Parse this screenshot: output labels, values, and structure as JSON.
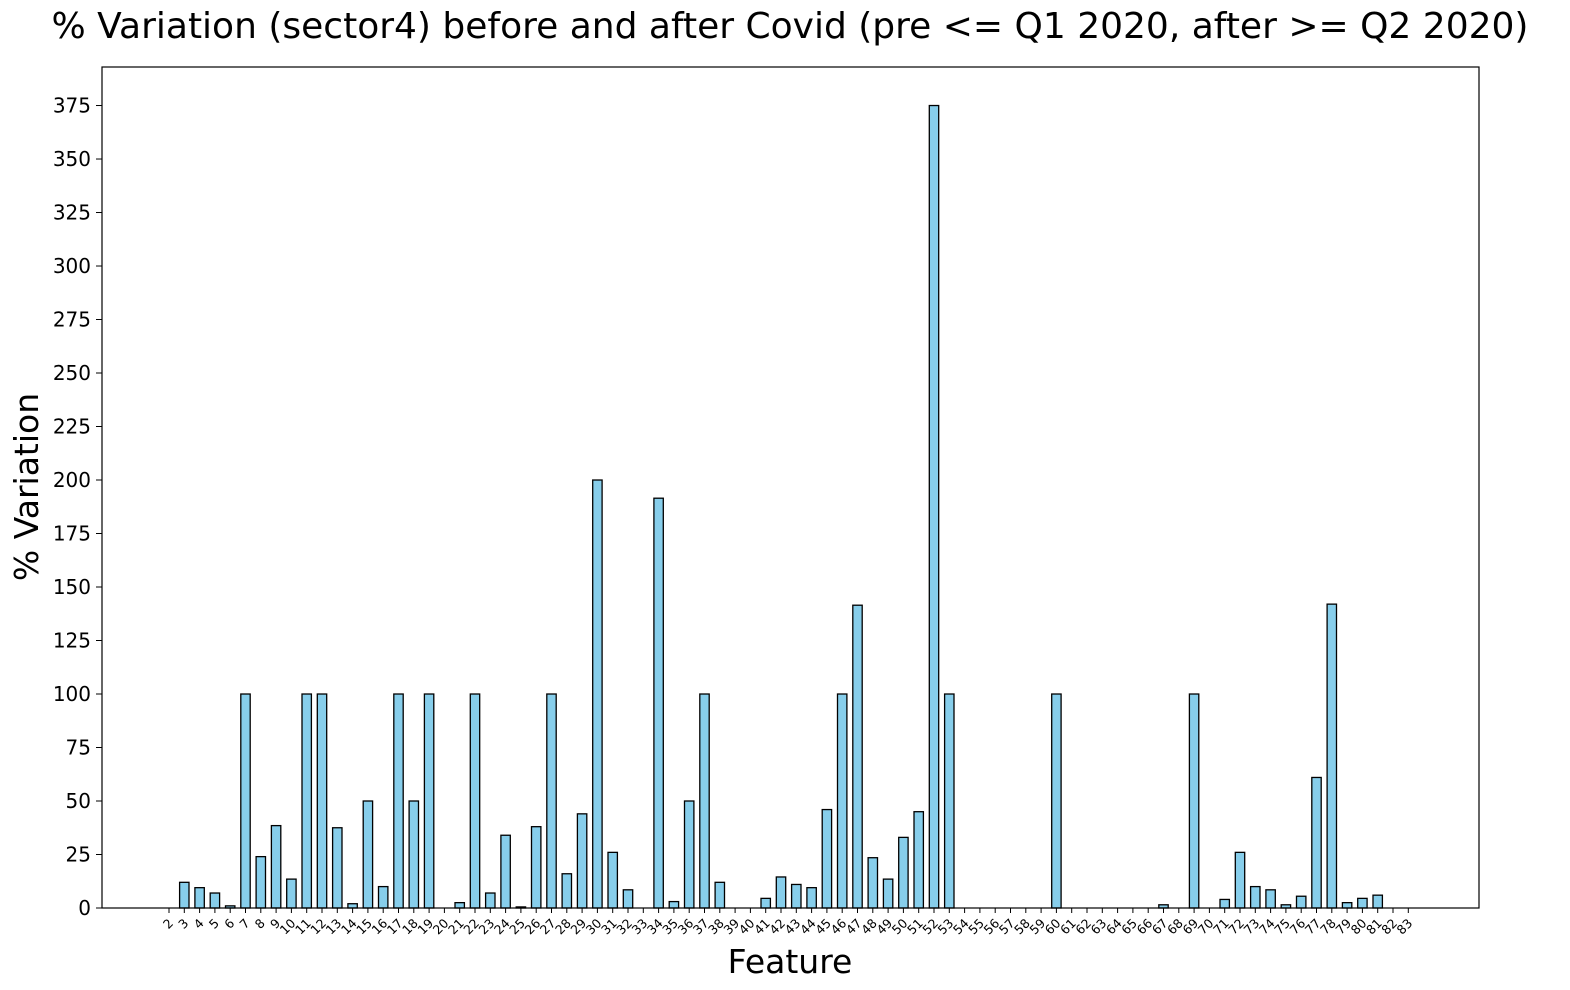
{
  "chart_data": {
    "type": "bar",
    "title": "% Variation (sector4) before and after Covid (pre <= Q1 2020, after >= Q2 2020)",
    "xlabel": "Feature",
    "ylabel": "% Variation",
    "ylim": [
      0,
      393
    ],
    "yticks": [
      0,
      25,
      50,
      75,
      100,
      125,
      150,
      175,
      200,
      225,
      250,
      275,
      300,
      325,
      350,
      375
    ],
    "grid": false,
    "bar_color": "#87ceeb",
    "edge_color": "#000000",
    "categories": [
      "2",
      "3",
      "4",
      "5",
      "6",
      "7",
      "8",
      "9",
      "10",
      "11",
      "12",
      "13",
      "14",
      "15",
      "16",
      "17",
      "18",
      "19",
      "20",
      "21",
      "22",
      "23",
      "24",
      "25",
      "26",
      "27",
      "28",
      "29",
      "30",
      "31",
      "32",
      "33",
      "34",
      "35",
      "36",
      "37",
      "38",
      "39",
      "40",
      "41",
      "42",
      "43",
      "44",
      "45",
      "46",
      "47",
      "48",
      "49",
      "50",
      "51",
      "52",
      "53",
      "54",
      "55",
      "56",
      "57",
      "58",
      "59",
      "60",
      "61",
      "62",
      "63",
      "64",
      "65",
      "66",
      "67",
      "68",
      "69",
      "70",
      "71",
      "72",
      "73",
      "74",
      "75",
      "76",
      "77",
      "78",
      "79",
      "80",
      "81",
      "82",
      "83"
    ],
    "values": [
      0,
      12,
      9.5,
      7,
      1,
      100,
      24,
      38.5,
      13.5,
      100,
      100,
      37.5,
      2,
      50,
      10,
      100,
      50,
      100,
      0,
      2.5,
      100,
      7,
      34,
      0.5,
      38,
      100,
      16,
      44,
      200,
      26,
      8.5,
      0,
      191.5,
      3,
      50,
      100,
      12,
      0,
      0,
      4.5,
      14.5,
      11,
      9.5,
      46,
      100,
      141.5,
      23.5,
      13.5,
      33,
      45,
      375,
      100,
      0,
      0,
      0,
      0,
      0,
      0,
      100,
      0,
      0,
      0,
      0,
      0,
      0,
      1.5,
      0,
      100,
      0,
      4,
      26,
      10,
      8.5,
      1.5,
      5.5,
      61,
      142,
      2.5,
      4.5,
      6,
      0,
      0
    ]
  }
}
